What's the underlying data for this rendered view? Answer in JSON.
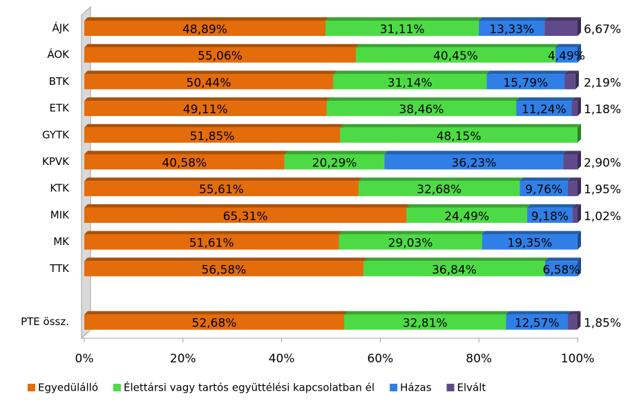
{
  "chart_data": {
    "type": "stacked_barh",
    "categories": [
      "ÁJK",
      "ÁOK",
      "BTK",
      "ETK",
      "GYTK",
      "KPVK",
      "KTK",
      "MIK",
      "MK",
      "TTK",
      null,
      "PTE össz."
    ],
    "series": [
      {
        "name": "Egyedülálló",
        "color": "#e46c0a",
        "values": [
          48.89,
          55.06,
          50.44,
          49.11,
          51.85,
          40.58,
          55.61,
          65.31,
          51.61,
          56.58,
          null,
          52.68
        ],
        "value_labels": [
          "48,89%",
          "55,06%",
          "50,44%",
          "49,11%",
          "51,85%",
          "40,58%",
          "55,61%",
          "65,31%",
          "51,61%",
          "56,58%",
          null,
          "52,68%"
        ]
      },
      {
        "name": "Élettársi vagy tartós együttélési kapcsolatban él",
        "color": "#4ddb45",
        "values": [
          31.11,
          40.45,
          31.14,
          38.46,
          48.15,
          20.29,
          32.68,
          24.49,
          29.03,
          36.84,
          null,
          32.81
        ],
        "value_labels": [
          "31,11%",
          "40,45%",
          "31,14%",
          "38,46%",
          "48,15%",
          "20,29%",
          "32,68%",
          "24,49%",
          "29,03%",
          "36,84%",
          null,
          "32,81%"
        ]
      },
      {
        "name": "Házas",
        "color": "#2f7fe6",
        "values": [
          13.33,
          4.49,
          15.79,
          11.24,
          null,
          36.23,
          9.76,
          9.18,
          19.35,
          6.58,
          null,
          12.57
        ],
        "value_labels": [
          "13,33%",
          "4,49%",
          "15,79%",
          "11,24%",
          null,
          "36,23%",
          "9,76%",
          "9,18%",
          "19,35%",
          "6,58%",
          null,
          "12,57%"
        ]
      },
      {
        "name": "Elvált",
        "color": "#604a8a",
        "values": [
          6.67,
          null,
          2.19,
          1.18,
          null,
          2.9,
          1.95,
          1.02,
          null,
          null,
          null,
          1.85
        ],
        "value_labels": [
          "6,67%",
          null,
          "2,19%",
          "1,18%",
          null,
          "2,90%",
          "1,95%",
          "1,02%",
          null,
          null,
          null,
          "1,85%"
        ]
      }
    ],
    "xlim": [
      0,
      100
    ],
    "xticks": [
      {
        "value": 0,
        "label": "0%"
      },
      {
        "value": 20,
        "label": "20%"
      },
      {
        "value": 40,
        "label": "40%"
      },
      {
        "value": 60,
        "label": "60%"
      },
      {
        "value": 80,
        "label": "80%"
      },
      {
        "value": 100,
        "label": "100%"
      }
    ],
    "legend": "bottom"
  }
}
